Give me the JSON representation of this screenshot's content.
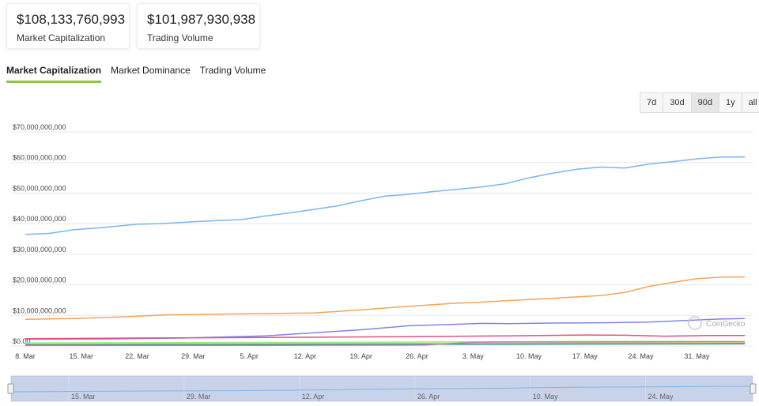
{
  "cards": {
    "market_cap": {
      "value": "$108,133,760,993",
      "label": "Market Capitalization"
    },
    "volume": {
      "value": "$101,987,930,938",
      "label": "Trading Volume"
    }
  },
  "tabs": [
    {
      "label": "Market Capitalization",
      "active": true
    },
    {
      "label": "Market Dominance",
      "active": false
    },
    {
      "label": "Trading Volume",
      "active": false
    }
  ],
  "ranges": [
    {
      "label": "7d",
      "active": false
    },
    {
      "label": "30d",
      "active": false
    },
    {
      "label": "90d",
      "active": true
    },
    {
      "label": "1y",
      "active": false
    },
    {
      "label": "all",
      "active": false
    }
  ],
  "watermark": "CoinGecko",
  "chart_data": {
    "type": "line",
    "ylim": [
      0,
      70000000000
    ],
    "yticks": [
      {
        "value": 0,
        "label": "$0.00"
      },
      {
        "value": 10000000000,
        "label": "$10,000,000,000"
      },
      {
        "value": 20000000000,
        "label": "$20,000,000,000"
      },
      {
        "value": 30000000000,
        "label": "$30,000,000,000"
      },
      {
        "value": 40000000000,
        "label": "$40,000,000,000"
      },
      {
        "value": 50000000000,
        "label": "$50,000,000,000"
      },
      {
        "value": 60000000000,
        "label": "$60,000,000,000"
      },
      {
        "value": 70000000000,
        "label": "$70,000,000,000"
      }
    ],
    "xrange": [
      0,
      90
    ],
    "xticks": [
      {
        "day": 0,
        "label": "8. Mar"
      },
      {
        "day": 7,
        "label": "15. Mar"
      },
      {
        "day": 14,
        "label": "22. Mar"
      },
      {
        "day": 21,
        "label": "29. Mar"
      },
      {
        "day": 28,
        "label": "5. Apr"
      },
      {
        "day": 35,
        "label": "12. Apr"
      },
      {
        "day": 42,
        "label": "19. Apr"
      },
      {
        "day": 49,
        "label": "26. Apr"
      },
      {
        "day": 56,
        "label": "3. May"
      },
      {
        "day": 63,
        "label": "10. May"
      },
      {
        "day": 70,
        "label": "17. May"
      },
      {
        "day": 77,
        "label": "24. May"
      },
      {
        "day": 84,
        "label": "31. May"
      }
    ],
    "navigator_ticks": [
      {
        "day": 7,
        "label": "15. Mar"
      },
      {
        "day": 21,
        "label": "29. Mar"
      },
      {
        "day": 35,
        "label": "12. Apr"
      },
      {
        "day": 49,
        "label": "26. Apr"
      },
      {
        "day": 63,
        "label": "10. May"
      },
      {
        "day": 77,
        "label": "24. May"
      }
    ],
    "grid": true,
    "legend": "none",
    "series": [
      {
        "color": "#7cb5ec",
        "x": [
          0,
          3,
          6,
          10,
          14,
          17,
          21,
          24,
          27,
          30,
          33,
          36,
          39,
          42,
          45,
          48,
          51,
          54,
          57,
          60,
          63,
          66,
          69,
          72,
          75,
          78,
          81,
          84,
          87,
          90
        ],
        "values": [
          36500000000,
          36800000000,
          38000000000,
          38800000000,
          39800000000,
          40000000000,
          40600000000,
          41000000000,
          41300000000,
          42500000000,
          43500000000,
          44600000000,
          45800000000,
          47500000000,
          49000000000,
          49600000000,
          50500000000,
          51200000000,
          52000000000,
          53000000000,
          55000000000,
          56500000000,
          57800000000,
          58500000000,
          58200000000,
          59500000000,
          60300000000,
          61200000000,
          61800000000,
          61800000000
        ]
      },
      {
        "color": "#f7a35c",
        "x": [
          0,
          6,
          12,
          18,
          24,
          30,
          36,
          42,
          48,
          54,
          57,
          60,
          66,
          72,
          75,
          78,
          81,
          84,
          87,
          90
        ],
        "values": [
          8700000000,
          9000000000,
          9500000000,
          10200000000,
          10400000000,
          10600000000,
          10800000000,
          11800000000,
          13000000000,
          14000000000,
          14300000000,
          14800000000,
          15600000000,
          16500000000,
          17500000000,
          19500000000,
          20800000000,
          22000000000,
          22500000000,
          22600000000
        ]
      },
      {
        "color": "#8085e9",
        "x": [
          0,
          10,
          20,
          30,
          36,
          42,
          48,
          54,
          57,
          60,
          66,
          72,
          78,
          84,
          87,
          90
        ],
        "values": [
          2200000000,
          2300000000,
          2600000000,
          3300000000,
          4300000000,
          5300000000,
          6600000000,
          7100000000,
          7400000000,
          7300000000,
          7500000000,
          7600000000,
          7800000000,
          8500000000,
          8800000000,
          9000000000
        ]
      },
      {
        "color": "#e4507f",
        "x": [
          0,
          15,
          30,
          45,
          60,
          70,
          75,
          80,
          85,
          90
        ],
        "values": [
          2400000000,
          2600000000,
          2800000000,
          3000000000,
          3300000000,
          3600000000,
          3500000000,
          3200000000,
          3400000000,
          3400000000
        ]
      },
      {
        "color": "#90ed7d",
        "x": [
          0,
          20,
          40,
          60,
          75,
          90
        ],
        "values": [
          1000000000,
          1100000000,
          1200000000,
          1400000000,
          1500000000,
          1500000000
        ]
      },
      {
        "color": "#e4d354",
        "x": [
          0,
          20,
          40,
          60,
          75,
          90
        ],
        "values": [
          600000000,
          700000000,
          800000000,
          900000000,
          1000000000,
          1000000000
        ]
      },
      {
        "color": "#2b908f",
        "x": [
          0,
          30,
          60,
          90
        ],
        "values": [
          400000000,
          500000000,
          600000000,
          700000000
        ]
      },
      {
        "color": "#c080c0",
        "x": [
          0,
          30,
          50,
          56,
          60,
          90
        ],
        "values": [
          150000000,
          200000000,
          300000000,
          1200000000,
          1300000000,
          1400000000
        ]
      }
    ]
  }
}
